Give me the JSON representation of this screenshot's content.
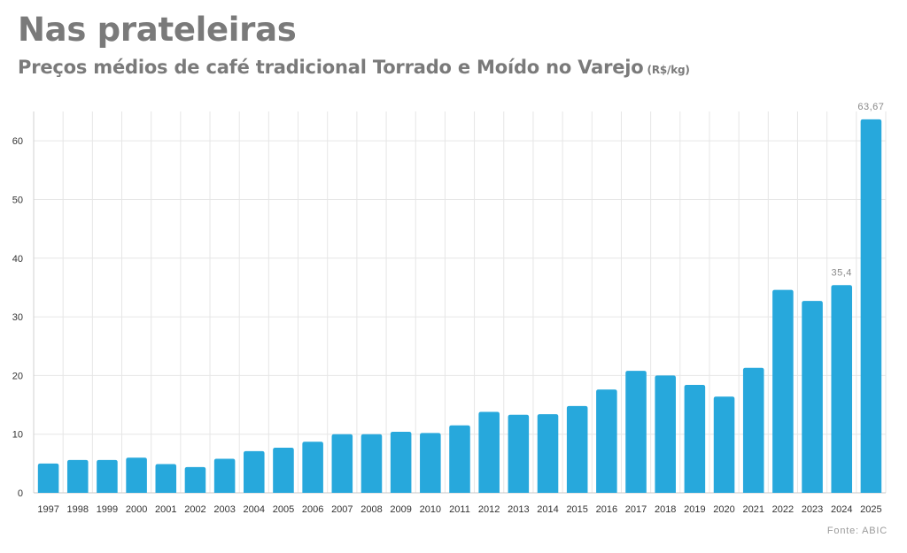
{
  "header": {
    "title": "Nas prateleiras",
    "subtitle": "Preços médios de café tradicional Torrado e Moído no Varejo",
    "unit": "(R$/kg)"
  },
  "footer": {
    "source": "Fonte: ABIC"
  },
  "colors": {
    "bar": "#27a8dc",
    "grid": "#e6e6e6",
    "title": "#7a7a7a"
  },
  "chart_data": {
    "type": "bar",
    "title": "Nas prateleiras",
    "subtitle": "Preços médios de café tradicional Torrado e Moído no Varejo",
    "ylabel": "",
    "xlabel": "",
    "ylim": [
      0,
      65
    ],
    "yticks": [
      0,
      10,
      20,
      30,
      40,
      50,
      60
    ],
    "grid": true,
    "categories": [
      "1997",
      "1998",
      "1999",
      "2000",
      "2001",
      "2002",
      "2003",
      "2004",
      "2005",
      "2006",
      "2007",
      "2008",
      "2009",
      "2010",
      "2011",
      "2012",
      "2013",
      "2014",
      "2015",
      "2016",
      "2017",
      "2018",
      "2019",
      "2020",
      "2021",
      "2022",
      "2023",
      "2024",
      "2025"
    ],
    "values": [
      5.0,
      5.6,
      5.6,
      6.0,
      4.9,
      4.4,
      5.8,
      7.1,
      7.7,
      8.7,
      10.0,
      10.0,
      10.4,
      10.2,
      11.5,
      13.8,
      13.3,
      13.4,
      14.8,
      17.6,
      20.8,
      20.0,
      18.4,
      16.4,
      21.3,
      34.6,
      32.7,
      35.4,
      63.67
    ],
    "data_labels": [
      {
        "category": "2024",
        "text": "35,4"
      },
      {
        "category": "2025",
        "text": "63,67"
      }
    ]
  }
}
